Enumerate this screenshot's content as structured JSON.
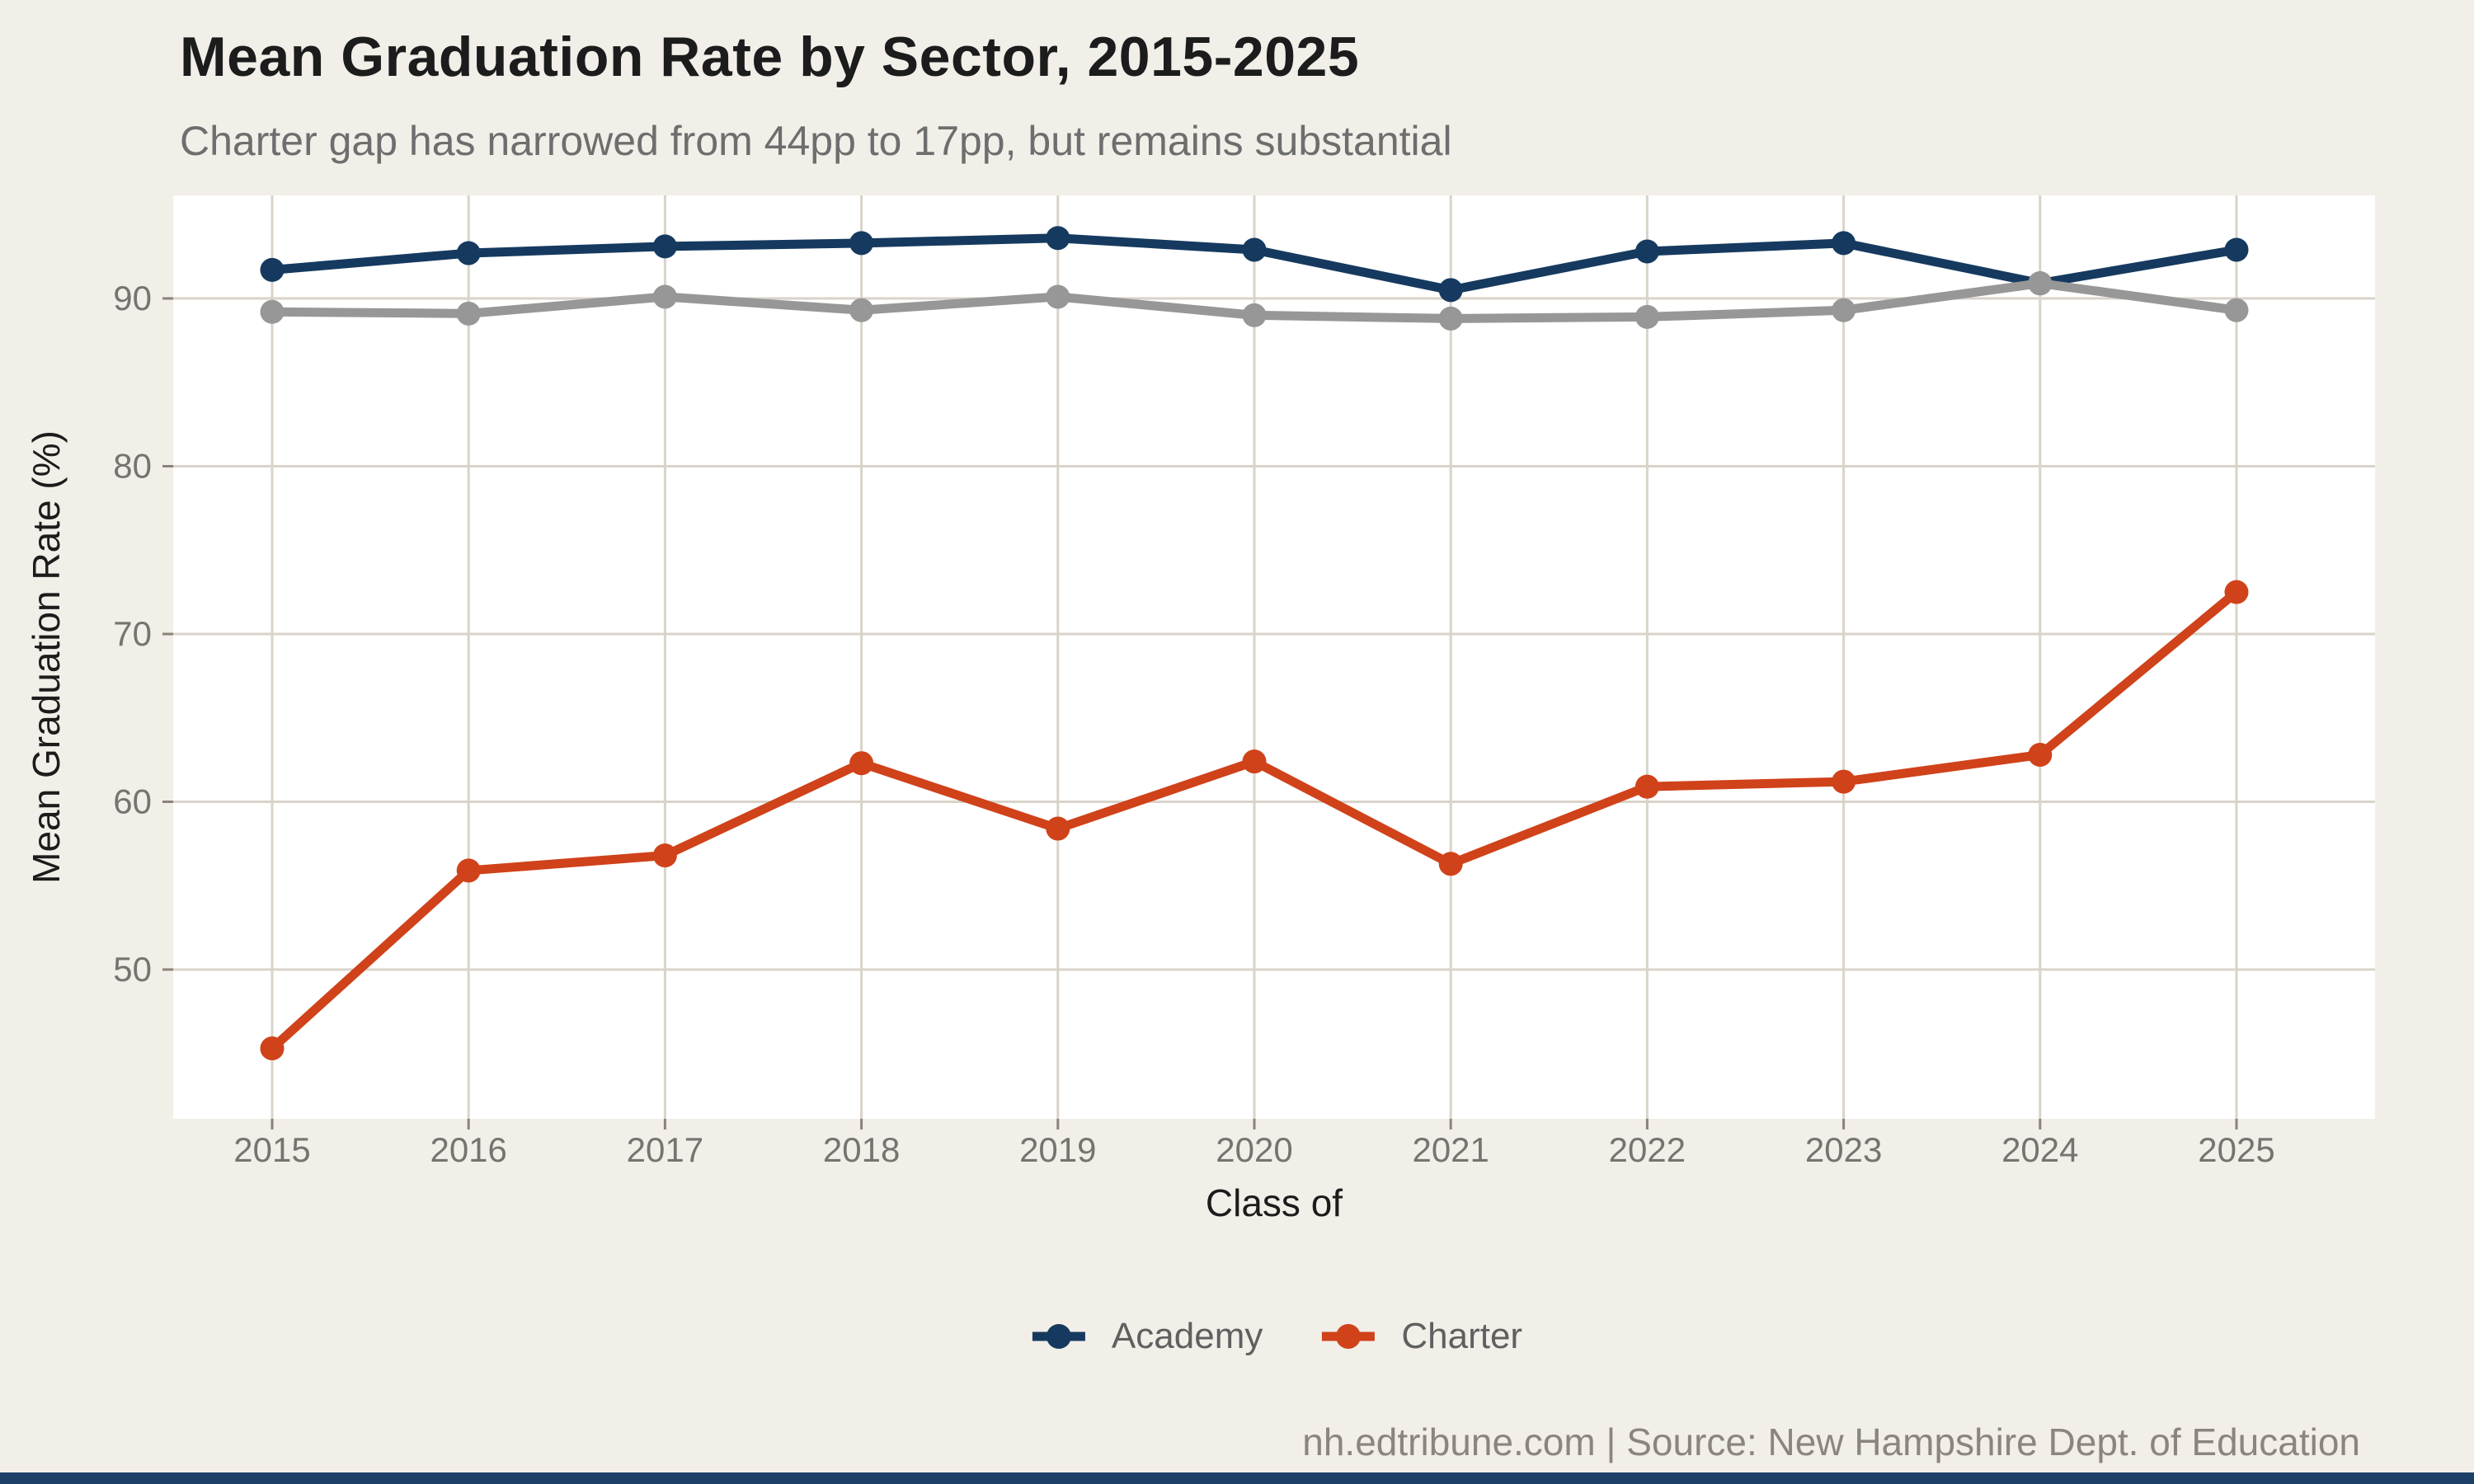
{
  "chart_data": {
    "type": "line",
    "title": "Mean Graduation Rate by Sector, 2015-2025",
    "subtitle": "Charter gap has narrowed from 44pp to 17pp, but remains substantial",
    "xlabel": "Class of",
    "ylabel": "Mean Graduation Rate (%)",
    "x": [
      2015,
      2016,
      2017,
      2018,
      2019,
      2020,
      2021,
      2022,
      2023,
      2024,
      2025
    ],
    "yticks": [
      50,
      60,
      70,
      80,
      90
    ],
    "ylim": [
      41,
      96
    ],
    "grid": true,
    "legend_position": "bottom",
    "legend": [
      "Academy",
      "Charter"
    ],
    "series": [
      {
        "name": "Academy",
        "color": "#163a5f",
        "in_legend": true,
        "values": [
          91.7,
          92.7,
          93.1,
          93.3,
          93.6,
          92.9,
          90.5,
          92.8,
          93.3,
          90.9,
          92.9
        ]
      },
      {
        "name": "Charter",
        "color": "#d0421a",
        "in_legend": true,
        "values": [
          45.3,
          55.9,
          56.8,
          62.3,
          58.4,
          62.4,
          56.3,
          60.9,
          61.2,
          62.8,
          72.5
        ]
      },
      {
        "name": "",
        "color": "#979797",
        "in_legend": false,
        "values": [
          89.2,
          89.1,
          90.1,
          89.3,
          90.1,
          89.0,
          88.8,
          88.9,
          89.3,
          90.9,
          89.3
        ]
      }
    ]
  },
  "footer": {
    "source_line": "nh.edtribune.com | Source: New Hampshire Dept. of Education"
  },
  "colors": {
    "background": "#f2efe9",
    "panel": "#ffffff",
    "gridline": "#d9d3c9",
    "tick": "#8a8379",
    "tick_text": "#767370",
    "title_text": "#1c1c1c",
    "subtitle_text": "#6e6e6e",
    "footer_text": "#8a857f",
    "bottom_bar": "#1d4068",
    "academy": "#163a5f",
    "charter": "#d0421a",
    "gray_series": "#979797"
  }
}
